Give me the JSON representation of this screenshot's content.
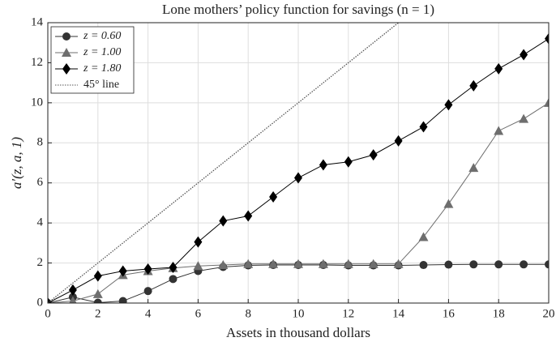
{
  "chart_data": {
    "type": "line",
    "title": "Lone mothers’ policy function for savings (n = 1)",
    "x_label": "Assets in thousand dollars",
    "y_label": "a′(z, a, 1)",
    "x": [
      0,
      1,
      2,
      3,
      4,
      5,
      6,
      7,
      8,
      9,
      10,
      11,
      12,
      13,
      14,
      15,
      16,
      17,
      18,
      19,
      20
    ],
    "xlim": [
      0,
      20
    ],
    "ylim": [
      0,
      14
    ],
    "xticks": [
      0,
      2,
      4,
      6,
      8,
      10,
      12,
      14,
      16,
      18,
      20
    ],
    "yticks": [
      0,
      2,
      4,
      6,
      8,
      10,
      12,
      14
    ],
    "grid": true,
    "legend": "upper left",
    "series": [
      {
        "name": "z = 0.60",
        "color": "#333333",
        "marker": "circle",
        "values": [
          0,
          0.3,
          0.02,
          0.1,
          0.6,
          1.2,
          1.6,
          1.8,
          1.88,
          1.9,
          1.9,
          1.9,
          1.88,
          1.88,
          1.88,
          1.9,
          1.92,
          1.93,
          1.93,
          1.93,
          1.93
        ]
      },
      {
        "name": "z = 1.00",
        "color": "#6e6e6e",
        "marker": "triangle",
        "values": [
          0,
          0.1,
          0.45,
          1.4,
          1.6,
          1.75,
          1.85,
          1.9,
          1.95,
          1.95,
          1.95,
          1.95,
          1.95,
          1.95,
          1.95,
          3.3,
          4.95,
          6.75,
          8.6,
          9.2,
          10.0
        ]
      },
      {
        "name": "z = 1.80",
        "color": "#000000",
        "marker": "diamond",
        "values": [
          0,
          0.65,
          1.35,
          1.6,
          1.7,
          1.78,
          3.05,
          4.1,
          4.35,
          5.3,
          6.25,
          6.9,
          7.05,
          7.4,
          8.1,
          8.8,
          9.9,
          10.85,
          11.7,
          12.4,
          13.2
        ]
      },
      {
        "name": "45° line",
        "color": "#555555",
        "dash": "dotted",
        "x": [
          0,
          20
        ],
        "values": [
          0,
          20
        ]
      }
    ]
  }
}
